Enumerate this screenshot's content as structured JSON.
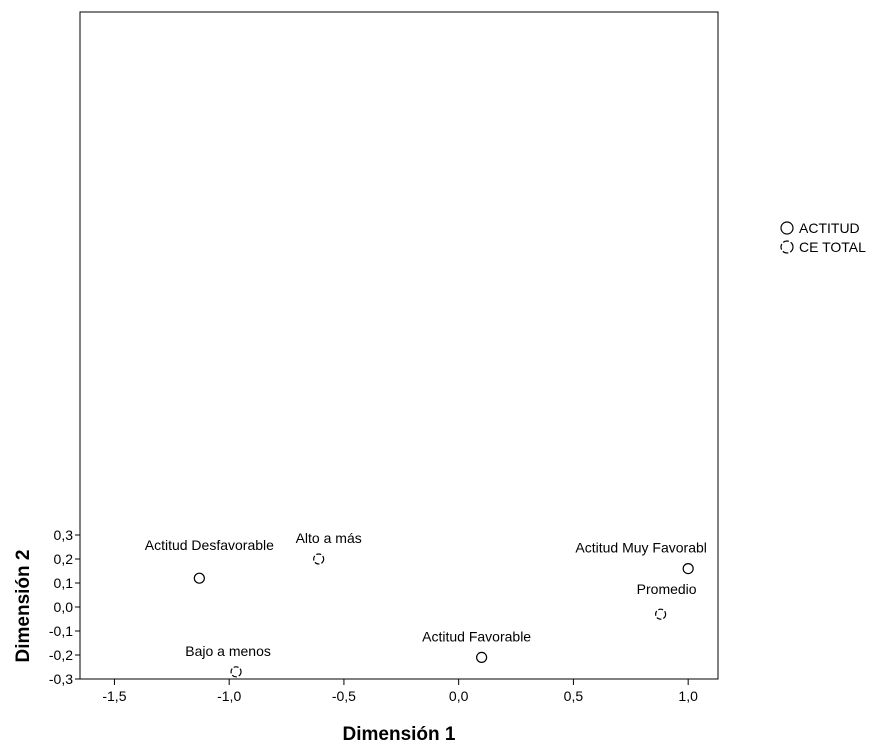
{
  "chart_data": {
    "type": "scatter",
    "xlabel": "Dimensión 1",
    "ylabel": "Dimensión 2",
    "xlim": [
      -1.65,
      1.13
    ],
    "ylim": [
      -0.3,
      0.3
    ],
    "x_ticks": [
      {
        "value": -1.5,
        "label": "-1,5"
      },
      {
        "value": -1.0,
        "label": "-1,0"
      },
      {
        "value": -0.5,
        "label": "-0,5"
      },
      {
        "value": 0.0,
        "label": "0,0"
      },
      {
        "value": 0.5,
        "label": "0,5"
      },
      {
        "value": 1.0,
        "label": "1,0"
      }
    ],
    "y_ticks": [
      {
        "value": 0.3,
        "label": "0,3"
      },
      {
        "value": 0.2,
        "label": "0,2"
      },
      {
        "value": 0.1,
        "label": "0,1"
      },
      {
        "value": 0.0,
        "label": "0,0"
      },
      {
        "value": -0.1,
        "label": "-0,1"
      },
      {
        "value": -0.2,
        "label": "-0,2"
      },
      {
        "value": -0.3,
        "label": "-0,3"
      }
    ],
    "legend": {
      "placement": "right",
      "entries": [
        {
          "name": "ACTITUD",
          "marker": "circle"
        },
        {
          "name": "CE TOTAL",
          "marker": "dashed-circle"
        }
      ]
    },
    "series": [
      {
        "name": "ACTITUD",
        "marker": "circle",
        "points": [
          {
            "label": "Actitud Desfavorable",
            "x": -1.13,
            "y": 0.12
          },
          {
            "label": "Actitud Favorable",
            "x": 0.1,
            "y": -0.21
          },
          {
            "label": "Actitud Muy Favorabl",
            "x": 1.0,
            "y": 0.16
          }
        ]
      },
      {
        "name": "CE TOTAL",
        "marker": "dashed-circle",
        "points": [
          {
            "label": "Alto a más",
            "x": -0.61,
            "y": 0.2
          },
          {
            "label": "Bajo a menos",
            "x": -0.97,
            "y": -0.27
          },
          {
            "label": "Promedio",
            "x": 0.88,
            "y": -0.03
          }
        ]
      }
    ]
  }
}
